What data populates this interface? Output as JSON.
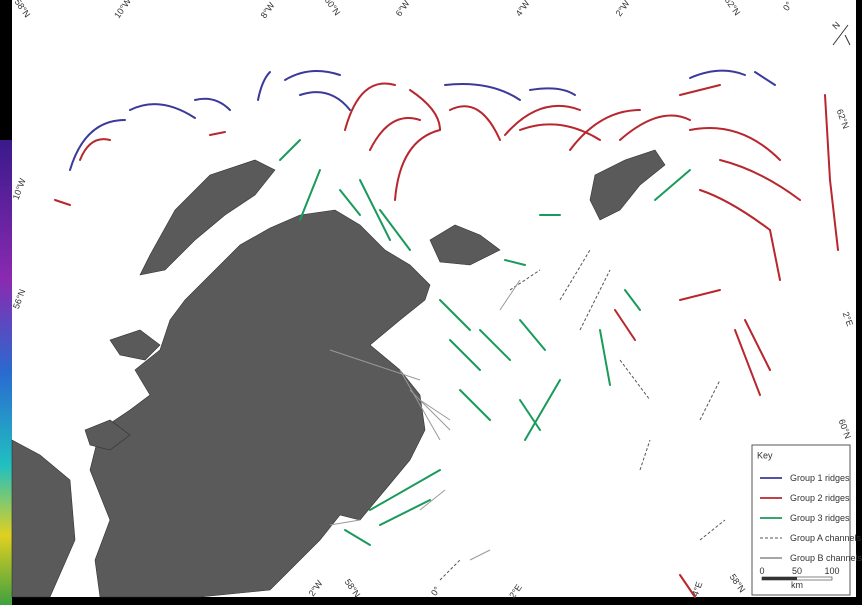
{
  "map": {
    "graticule_labels": [
      "58°N",
      "10°W",
      "8°W",
      "60°N",
      "6°W",
      "4°W",
      "2°W",
      "62°N",
      "0°",
      "10°W",
      "56°N",
      "62°N",
      "2°E",
      "60°N",
      "2°W",
      "58°N",
      "0°",
      "2°E",
      "4°E",
      "58°N"
    ],
    "north": "N",
    "key": {
      "title": "Key",
      "items": [
        {
          "label": "Group 1 ridges",
          "color": "#3a3a9a",
          "style": "solid"
        },
        {
          "label": "Group 2 ridges",
          "color": "#b8262e",
          "style": "solid"
        },
        {
          "label": "Group 3 ridges",
          "color": "#1a9a5a",
          "style": "solid"
        },
        {
          "label": "Group A channels",
          "color": "#555555",
          "style": "dashed"
        },
        {
          "label": "Group B channels",
          "color": "#999999",
          "style": "solid"
        }
      ]
    },
    "scale": {
      "labels": [
        "0",
        "50",
        "100"
      ],
      "unit": "km"
    }
  }
}
